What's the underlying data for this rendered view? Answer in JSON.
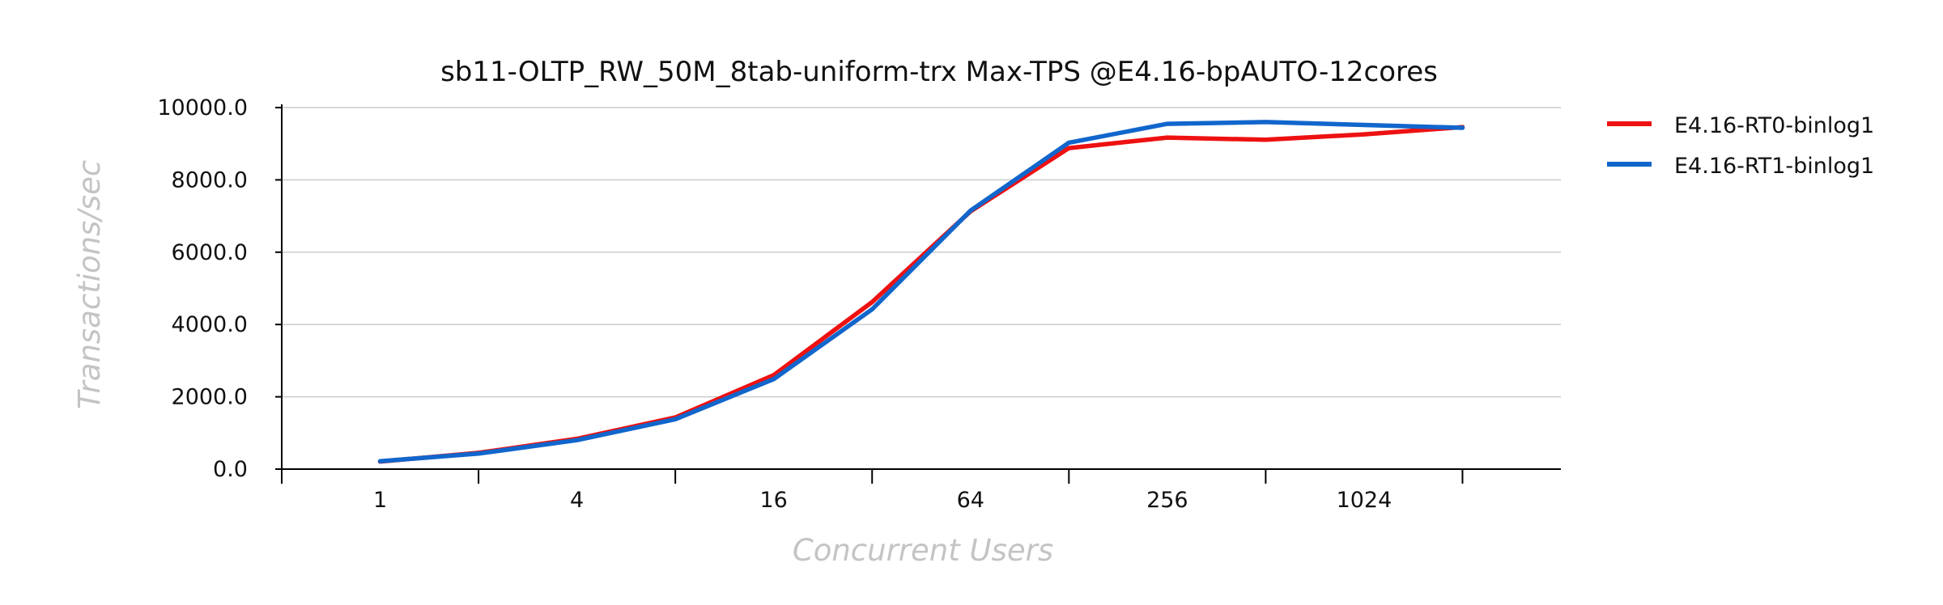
{
  "chart_data": {
    "type": "line",
    "title": "sb11-OLTP_RW_50M_8tab-uniform-trx Max-TPS @E4.16-bpAUTO-12cores",
    "xlabel": "Concurrent Users",
    "ylabel": "Transactions/sec",
    "x": [
      1,
      2,
      4,
      8,
      16,
      32,
      64,
      128,
      256,
      512,
      1024,
      2048
    ],
    "x_tick_labels": [
      "1",
      "4",
      "16",
      "64",
      "256",
      "1024"
    ],
    "x_tick_label_values": [
      1,
      4,
      16,
      64,
      256,
      1024
    ],
    "x_scale": "log2",
    "xlim": [
      0.5,
      4096
    ],
    "y_ticks": [
      "0.0",
      "2000.0",
      "4000.0",
      "6000.0",
      "8000.0",
      "10000.0"
    ],
    "y_tick_values": [
      0,
      2000,
      4000,
      6000,
      8000,
      10000
    ],
    "ylim": [
      0,
      10000
    ],
    "grid": "horizontal",
    "legend_position": "top-right outside",
    "series": [
      {
        "name": "E4.16-RT0-binlog1",
        "color": "#ee1111",
        "values": [
          210,
          450,
          840,
          1430,
          2600,
          4620,
          7130,
          8880,
          9170,
          9110,
          9260,
          9460
        ]
      },
      {
        "name": "E4.16-RT1-binlog1",
        "color": "#1166cc",
        "values": [
          220,
          430,
          800,
          1380,
          2490,
          4420,
          7150,
          9030,
          9550,
          9600,
          9520,
          9440
        ]
      }
    ]
  }
}
